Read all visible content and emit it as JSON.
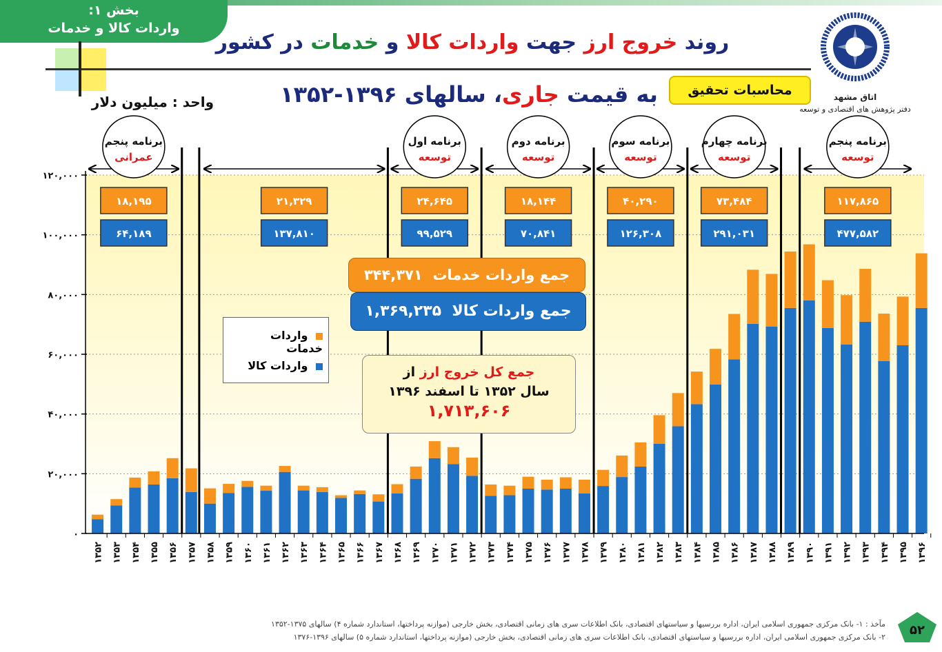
{
  "section_tab": {
    "line1": "بخش ۱:",
    "line2": "واردات کالا و خدمات"
  },
  "title": {
    "p1": "روند ",
    "p2": "خروج ارز",
    "p3": " جهت ",
    "p4": "واردات کالا",
    "p5": " و ",
    "p6": "خدمات",
    "p7": " در کشور"
  },
  "subtitle": {
    "p1": "به قیمت ",
    "p2": "جاری",
    "p3": "، سالهای ۱۳۹۶-۱۳۵۲"
  },
  "unit": "واحد : میلیون دلار",
  "calc_badge": "محاسبات تحقیق",
  "logo": {
    "name": "اتاق مشهد",
    "dept": "دفتر پژوهش های اقتصادی و توسعه"
  },
  "page_number": "۵۲",
  "footnote": {
    "line1": "مآخذ : ۱- بانک مرکزی جمهوری اسلامی ایران، اداره بررسیها و سیاستهای اقتصادی، بانک اطلاعات سری های زمانی اقتصادی، بخش خارجی (موازنه پرداختها، استاندارد شماره ۴) سالهای ۱۳۷۵-۱۳۵۲",
    "line2": "۲- بانک مرکزی جمهوری اسلامی ایران، اداره بررسیها و سیاستهای اقتصادی، بانک اطلاعات سری های زمانی اقتصادی، بخش خارجی (موازنه پرداختها، استاندارد شماره ۵) سالهای ۱۳۹۶-۱۳۷۶"
  },
  "totals": {
    "services_label": "جمع واردات خدمات",
    "services_value": "۳۴۴,۳۷۱",
    "goods_label": "جمع واردات کالا",
    "goods_value": "۱,۳۶۹,۲۳۵",
    "all_l1_a": "جمع کل خروج ارز",
    "all_l1_b": " از",
    "all_l2": "سال ۱۳۵۲ تا اسفند ۱۳۹۶",
    "all_value": "۱,۷۱۳,۶۰۶"
  },
  "legend": {
    "services": "واردات خدمات",
    "goods": "واردات کالا"
  },
  "colors": {
    "services": "#f7941d",
    "goods": "#1f72c4",
    "plan_box_services": "#f7941d",
    "plan_box_goods": "#1f72c4"
  },
  "chart_data": {
    "type": "bar",
    "stacked": true,
    "categories": [
      "۱۳۵۲",
      "۱۳۵۳",
      "۱۳۵۴",
      "۱۳۵۵",
      "۱۳۵۶",
      "۱۳۵۷",
      "۱۳۵۸",
      "۱۳۵۹",
      "۱۳۶۰",
      "۱۳۶۱",
      "۱۳۶۲",
      "۱۳۶۳",
      "۱۳۶۴",
      "۱۳۶۵",
      "۱۳۶۶",
      "۱۳۶۷",
      "۱۳۶۸",
      "۱۳۶۹",
      "۱۳۷۰",
      "۱۳۷۱",
      "۱۳۷۲",
      "۱۳۷۳",
      "۱۳۷۴",
      "۱۳۷۵",
      "۱۳۷۶",
      "۱۳۷۷",
      "۱۳۷۸",
      "۱۳۷۹",
      "۱۳۸۰",
      "۱۳۸۱",
      "۱۳۸۲",
      "۱۳۸۳",
      "۱۳۸۴",
      "۱۳۸۵",
      "۱۳۸۶",
      "۱۳۸۷",
      "۱۳۸۸",
      "۱۳۸۹",
      "۱۳۹۰",
      "۱۳۹۱",
      "۱۳۹۲",
      "۱۳۹۳",
      "۱۳۹۴",
      "۱۳۹۵",
      "۱۳۹۶"
    ],
    "series": [
      {
        "name": "واردات کالا",
        "values": [
          4800,
          9400,
          15400,
          16400,
          18500,
          13900,
          10000,
          13500,
          15600,
          14300,
          20600,
          14400,
          13900,
          11900,
          13200,
          10700,
          13400,
          18300,
          25200,
          23200,
          19300,
          12600,
          12800,
          15000,
          14700,
          15000,
          13400,
          15900,
          18900,
          22400,
          30000,
          35900,
          43300,
          49900,
          58300,
          70200,
          69300,
          75500,
          78000,
          68800,
          63300,
          70900,
          57700,
          63000,
          75500
        ]
      },
      {
        "name": "واردات خدمات",
        "values": [
          1500,
          2100,
          3300,
          4400,
          6700,
          7900,
          5100,
          3100,
          2000,
          1700,
          2000,
          1600,
          1600,
          900,
          1200,
          2400,
          3100,
          4100,
          5700,
          5700,
          6100,
          3800,
          3200,
          4000,
          3300,
          3800,
          4600,
          5400,
          7200,
          8100,
          9600,
          11100,
          10900,
          11900,
          15200,
          18100,
          17600,
          18900,
          18800,
          16000,
          16500,
          17700,
          15900,
          16300,
          18300
        ]
      }
    ],
    "yticks": [
      "۰",
      "۲۰,۰۰۰",
      "۴۰,۰۰۰",
      "۶۰,۰۰۰",
      "۸۰,۰۰۰",
      "۱۰۰,۰۰۰",
      "۱۲۰,۰۰۰"
    ],
    "ylim": [
      0,
      120000
    ],
    "plans": [
      {
        "l1": "برنامه پنجم",
        "l2": "عمرانی",
        "services": "۱۸,۱۹۵",
        "goods": "۶۴,۱۸۹"
      },
      {
        "l1": "",
        "l2": "",
        "services": "۲۱,۳۲۹",
        "goods": "۱۳۷,۸۱۰"
      },
      {
        "l1": "برنامه اول",
        "l2": "توسعه",
        "services": "۲۴,۶۴۵",
        "goods": "۹۹,۵۲۹"
      },
      {
        "l1": "برنامه دوم",
        "l2": "توسعه",
        "services": "۱۸,۱۴۴",
        "goods": "۷۰,۸۴۱"
      },
      {
        "l1": "برنامه سوم",
        "l2": "توسعه",
        "services": "۴۰,۲۹۰",
        "goods": "۱۲۶,۳۰۸"
      },
      {
        "l1": "برنامه چهارم",
        "l2": "توسعه",
        "services": "۷۳,۴۸۴",
        "goods": "۲۹۱,۰۳۱"
      },
      {
        "l1": "برنامه پنجم",
        "l2": "توسعه",
        "services": "۱۱۷,۸۶۵",
        "goods": "۴۷۷,۵۸۲"
      }
    ]
  }
}
